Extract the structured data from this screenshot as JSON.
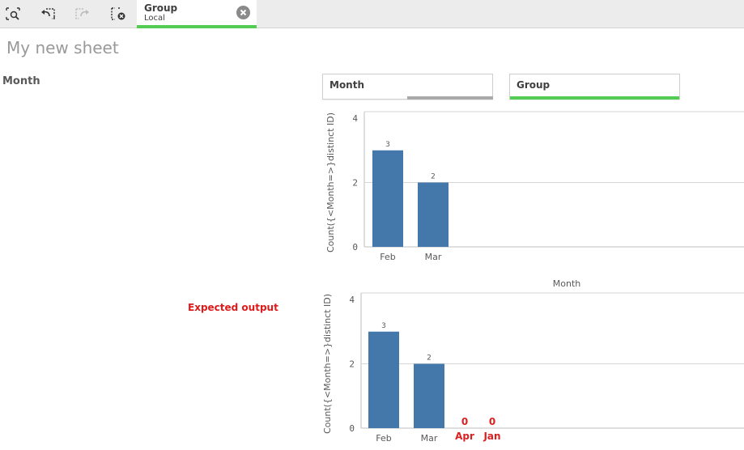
{
  "toolbar": {
    "buttons": [
      {
        "icon": "smart-search-icon"
      },
      {
        "icon": "step-back-icon"
      },
      {
        "icon": "step-forward-icon"
      },
      {
        "icon": "clear-selections-icon"
      }
    ],
    "selection_tab": {
      "field": "Group",
      "state": "Local",
      "accent": "#52cc52"
    }
  },
  "sheet": {
    "title": "My new sheet"
  },
  "left_label": "Month",
  "filters": [
    {
      "label": "Month",
      "bar_color": "#a9a9a9"
    },
    {
      "label": "Group",
      "bar_color": "#52cc52"
    }
  ],
  "annotation": {
    "expected_output": "Expected output",
    "color": "#e01a1a"
  },
  "colors": {
    "bar": "#4477aa",
    "grid": "#d6d6d6",
    "missing": "#dd1f1f"
  },
  "chart_data": [
    {
      "type": "bar",
      "title": "",
      "xlabel": "",
      "ylabel": "Count({<Month=>}distinct ID)",
      "ylim": [
        0,
        4
      ],
      "yticks": [
        0,
        2,
        4
      ],
      "categories": [
        "Feb",
        "Mar"
      ],
      "values": [
        3,
        2
      ],
      "data_labels": [
        "3",
        "2"
      ]
    },
    {
      "type": "bar",
      "title": "",
      "xlabel": "Month",
      "ylabel": "Count({<Month=>}distinct ID)",
      "ylim": [
        0,
        4
      ],
      "yticks": [
        0,
        2,
        4
      ],
      "categories": [
        "Feb",
        "Mar"
      ],
      "values": [
        3,
        2
      ],
      "data_labels": [
        "3",
        "2"
      ],
      "expected_categories": [
        "Apr",
        "Jan"
      ],
      "expected_values": [
        0,
        0
      ],
      "expected_labels": [
        "0",
        "0"
      ]
    }
  ]
}
